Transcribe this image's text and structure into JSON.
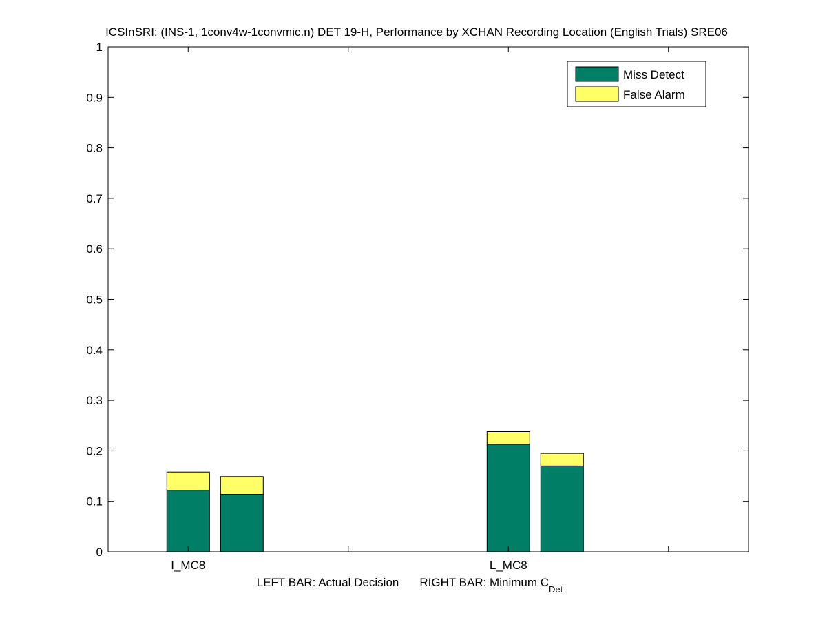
{
  "chart_data": {
    "type": "bar",
    "stacked": true,
    "title": "ICSInSRI: (INS-1, 1conv4w-1convmic.n) DET 19-H,  Performance by XCHAN Recording Location (English Trials) SRE06",
    "xlabel": {
      "left": "LEFT BAR: Actual Decision",
      "right_prefix": "RIGHT BAR: Minimum C",
      "right_subscript": "Det"
    },
    "ylabel": "",
    "ylim": [
      0,
      1
    ],
    "xlim": [
      0.5,
      4.5
    ],
    "yticks": [
      "0",
      "0.1",
      "0.2",
      "0.3",
      "0.4",
      "0.5",
      "0.6",
      "0.7",
      "0.8",
      "0.9",
      "1"
    ],
    "xtick_positions": [
      1,
      2,
      3,
      4
    ],
    "categories": [
      "I_MC8",
      "L_MC8"
    ],
    "bars_per_category": [
      "Actual Decision",
      "Minimum CDet"
    ],
    "series": [
      {
        "name": "Miss Detect",
        "color": "#007f66",
        "values": [
          [
            0.122,
            0.114
          ],
          [
            0.213,
            0.17
          ]
        ]
      },
      {
        "name": "False Alarm",
        "color": "#ffff66",
        "values": [
          [
            0.036,
            0.035
          ],
          [
            0.025,
            0.025
          ]
        ]
      }
    ],
    "legend_position": "top-right",
    "grid": false
  }
}
